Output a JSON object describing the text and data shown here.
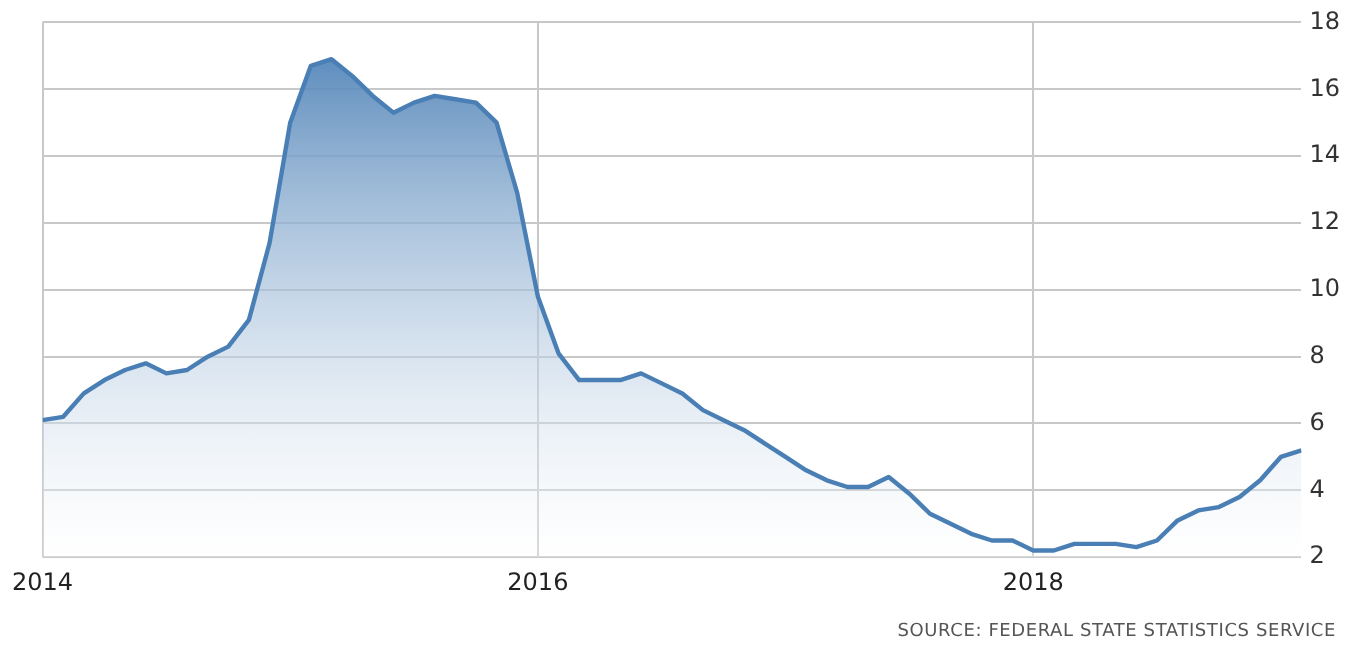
{
  "chart_data": {
    "type": "area",
    "x": [
      "2014-01",
      "2014-02",
      "2014-03",
      "2014-04",
      "2014-05",
      "2014-06",
      "2014-07",
      "2014-08",
      "2014-09",
      "2014-10",
      "2014-11",
      "2014-12",
      "2015-01",
      "2015-02",
      "2015-03",
      "2015-04",
      "2015-05",
      "2015-06",
      "2015-07",
      "2015-08",
      "2015-09",
      "2015-10",
      "2015-11",
      "2015-12",
      "2016-01",
      "2016-02",
      "2016-03",
      "2016-04",
      "2016-05",
      "2016-06",
      "2016-07",
      "2016-08",
      "2016-09",
      "2016-10",
      "2016-11",
      "2016-12",
      "2017-01",
      "2017-02",
      "2017-03",
      "2017-04",
      "2017-05",
      "2017-06",
      "2017-07",
      "2017-08",
      "2017-09",
      "2017-10",
      "2017-11",
      "2017-12",
      "2018-01",
      "2018-02",
      "2018-03",
      "2018-04",
      "2018-05",
      "2018-06",
      "2018-07",
      "2018-08",
      "2018-09",
      "2018-10",
      "2018-11",
      "2018-12",
      "2019-01",
      "2019-02"
    ],
    "series": [
      {
        "color": "#4a7fb5",
        "values": [
          6.1,
          6.2,
          6.9,
          7.3,
          7.6,
          7.8,
          7.5,
          7.6,
          8.0,
          8.3,
          9.1,
          11.4,
          15.0,
          16.7,
          16.9,
          16.4,
          15.8,
          15.3,
          15.6,
          15.8,
          15.7,
          15.6,
          15.0,
          12.9,
          9.8,
          8.1,
          7.3,
          7.3,
          7.3,
          7.5,
          7.2,
          6.9,
          6.4,
          6.1,
          5.8,
          5.4,
          5.0,
          4.6,
          4.3,
          4.1,
          4.1,
          4.4,
          3.9,
          3.3,
          3.0,
          2.7,
          2.5,
          2.5,
          2.2,
          2.2,
          2.4,
          2.4,
          2.4,
          2.3,
          2.5,
          3.1,
          3.4,
          3.5,
          3.8,
          4.3,
          5.0,
          5.2
        ]
      }
    ],
    "xlim": [
      "2014-01",
      "2019-02"
    ],
    "xticks": [
      "2014",
      "2016",
      "2018"
    ],
    "ylim": [
      2,
      18
    ],
    "yticks": [
      2,
      4,
      6,
      8,
      10,
      12,
      14,
      16,
      18
    ],
    "grid": true,
    "legend": false,
    "annotations": [
      "SOURCE: FEDERAL STATE STATISTICS SERVICE"
    ]
  }
}
